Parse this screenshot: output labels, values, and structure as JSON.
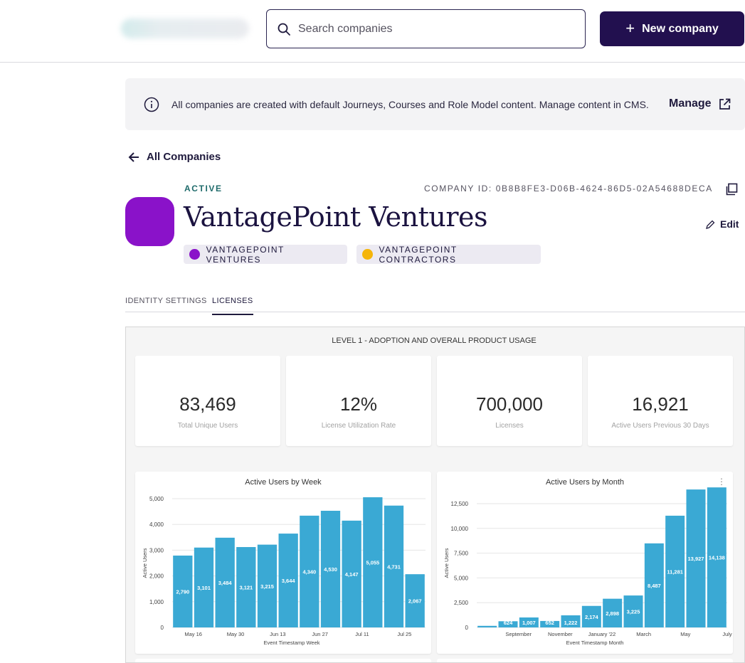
{
  "header": {
    "search_placeholder": "Search companies",
    "new_company_label": "New company"
  },
  "banner": {
    "message": "All companies are created with default Journeys, Courses and Role Model content. Manage content in CMS.",
    "manage_label": "Manage"
  },
  "nav": {
    "back_label": "All Companies"
  },
  "company": {
    "status": "ACTIVE",
    "id_label": "COMPANY ID: 0B8B8FE3-D06B-4624-86D5-02A54688DECA",
    "name": "VantagePoint Ventures",
    "edit_label": "Edit",
    "avatar_color": "#8a12c9",
    "tags": [
      {
        "label": "VANTAGEPOINT VENTURES",
        "color": "#8a12c9"
      },
      {
        "label": "VANTAGEPOINT CONTRACTORS",
        "color": "#f5b50a"
      }
    ]
  },
  "tabs": [
    {
      "label": "IDENTITY SETTINGS",
      "active": false
    },
    {
      "label": "LICENSES",
      "active": true
    }
  ],
  "dashboard": {
    "title": "LEVEL 1 - ADOPTION AND OVERALL PRODUCT USAGE",
    "kpis": [
      {
        "value": "83,469",
        "label": "Total Unique Users"
      },
      {
        "value": "12%",
        "label": "License Utilization Rate"
      },
      {
        "value": "700,000",
        "label": "Licenses"
      },
      {
        "value": "16,921",
        "label": "Active Users Previous 30 Days"
      }
    ]
  },
  "chart_data": [
    {
      "type": "bar",
      "title": "Active Users by Week",
      "xlabel": "Event Timestamp Week",
      "ylabel": "Active Users",
      "ylim": [
        0,
        5000
      ],
      "yticks": [
        "0",
        "1,000",
        "2,000",
        "3,000",
        "4,000",
        "5,000"
      ],
      "ytick_values": [
        0,
        1000,
        2000,
        3000,
        4000,
        5000
      ],
      "xticks": [
        {
          "label": "May 16",
          "index": 0.5
        },
        {
          "label": "May 30",
          "index": 2.5
        },
        {
          "label": "Jun 13",
          "index": 4.5
        },
        {
          "label": "Jun 27",
          "index": 6.5
        },
        {
          "label": "Jul 11",
          "index": 8.5
        },
        {
          "label": "Jul 25",
          "index": 10.5
        }
      ],
      "values": [
        2790,
        3101,
        3484,
        3121,
        3215,
        3644,
        4340,
        4530,
        4147,
        5055,
        4731,
        2067
      ],
      "data_labels": [
        "2,790",
        "3,101",
        "3,484",
        "3,121",
        "3,215",
        "3,644",
        "4,340",
        "4,530",
        "4,147",
        "5,055",
        "4,731",
        "2,067"
      ],
      "color": "#3aa9d4",
      "grid": true
    },
    {
      "type": "bar",
      "title": "Active Users by Month",
      "xlabel": "Event Timestamp Month",
      "ylabel": "Active Users",
      "ylim": [
        0,
        13000
      ],
      "yticks": [
        "0",
        "2,500",
        "5,000",
        "7,500",
        "10,000",
        "12,500"
      ],
      "ytick_values": [
        0,
        2500,
        5000,
        7500,
        10000,
        12500
      ],
      "xticks": [
        {
          "label": "September",
          "index": 1.5
        },
        {
          "label": "November",
          "index": 3.5
        },
        {
          "label": "January '22",
          "index": 5.5
        },
        {
          "label": "March",
          "index": 7.5
        },
        {
          "label": "May",
          "index": 9.5
        },
        {
          "label": "July",
          "index": 11.5
        }
      ],
      "values": [
        160,
        624,
        1007,
        652,
        1222,
        2174,
        2898,
        3225,
        8487,
        11281,
        13927,
        14138
      ],
      "data_labels": [
        "",
        "624",
        "1,007",
        "652",
        "1,222",
        "2,174",
        "2,898",
        "3,225",
        "8,487",
        "11,281",
        "13,927",
        "14,138"
      ],
      "color": "#3aa9d4",
      "grid": true
    }
  ]
}
